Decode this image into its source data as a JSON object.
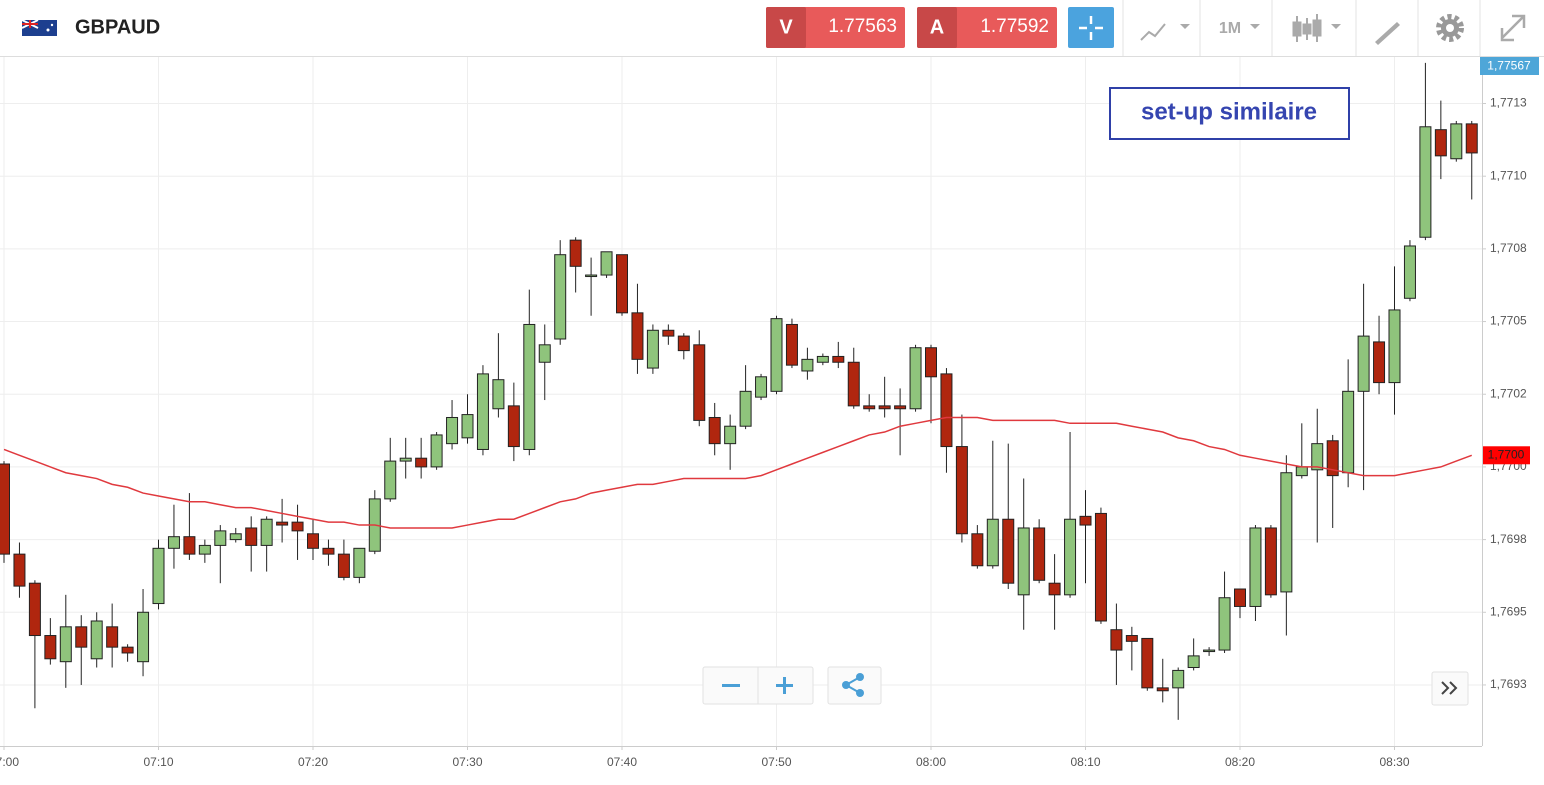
{
  "header": {
    "symbol": "GBPAUD",
    "sell_label": "V",
    "sell_price": 1.77563,
    "buy_label": "A",
    "buy_price": 1.77592,
    "timeframe": "1M"
  },
  "chart_data": {
    "type": "candlestick",
    "annotation": "set-up similaire",
    "price_label": "1,77567",
    "up_color": "#8fc47c",
    "down_color": "#b0260f",
    "grid": true,
    "ylim": [
      1.76904,
      1.77141
    ],
    "yticks": [
      {
        "value": 1.76925,
        "label": "1,7693"
      },
      {
        "value": 1.7695,
        "label": "1,7695"
      },
      {
        "value": 1.76975,
        "label": "1,7698"
      },
      {
        "value": 1.77,
        "label": "1,7700"
      },
      {
        "value": 1.77025,
        "label": "1,7702"
      },
      {
        "value": 1.7705,
        "label": "1,7705"
      },
      {
        "value": 1.77075,
        "label": "1,7708"
      },
      {
        "value": 1.771,
        "label": "1,7710"
      },
      {
        "value": 1.77125,
        "label": "1,7713"
      }
    ],
    "categories": [
      "07:00",
      null,
      null,
      null,
      null,
      null,
      null,
      null,
      null,
      null,
      "07:10",
      null,
      null,
      null,
      null,
      null,
      null,
      null,
      null,
      null,
      "07:20",
      null,
      null,
      null,
      null,
      null,
      null,
      null,
      null,
      null,
      "07:30",
      null,
      null,
      null,
      null,
      null,
      null,
      null,
      null,
      null,
      "07:40",
      null,
      null,
      null,
      null,
      null,
      null,
      null,
      null,
      null,
      "07:50",
      null,
      null,
      null,
      null,
      null,
      null,
      null,
      null,
      null,
      "08:00",
      null,
      null,
      null,
      null,
      null,
      null,
      null,
      null,
      null,
      "08:10",
      null,
      null,
      null,
      null,
      null,
      null,
      null,
      null,
      null,
      "08:20",
      null,
      null,
      null,
      null,
      null,
      null,
      null,
      null,
      null,
      "08:30",
      null,
      null,
      null,
      null,
      null
    ],
    "open": [
      1.77001,
      1.7697,
      1.7696,
      1.76942,
      1.76933,
      1.76945,
      1.76934,
      1.76945,
      1.76938,
      1.76933,
      1.76953,
      1.76972,
      1.76976,
      1.7697,
      1.76973,
      1.76975,
      1.76979,
      1.76973,
      1.76981,
      1.76981,
      1.76977,
      1.76972,
      1.7697,
      1.76962,
      1.76971,
      1.76989,
      1.77002,
      1.77003,
      1.77,
      1.77008,
      1.7701,
      1.77006,
      1.7702,
      1.77021,
      1.77006,
      1.77036,
      1.77044,
      1.77078,
      1.77066,
      1.77066,
      1.77073,
      1.77053,
      1.77034,
      1.77047,
      1.77045,
      1.77042,
      1.77017,
      1.77008,
      1.77014,
      1.77024,
      1.77026,
      1.77049,
      1.77033,
      1.77036,
      1.77038,
      1.77036,
      1.77021,
      1.77021,
      1.77021,
      1.7702,
      1.77041,
      1.77032,
      1.77007,
      1.76977,
      1.76966,
      1.76982,
      1.76956,
      1.76979,
      1.7696,
      1.76956,
      1.76983,
      1.76984,
      1.76944,
      1.76942,
      1.76941,
      1.76924,
      1.76924,
      1.76931,
      1.76937,
      1.76937,
      1.76958,
      1.76952,
      1.76979,
      1.76957,
      1.76997,
      1.76999,
      1.77009,
      1.76998,
      1.77026,
      1.77043,
      1.77029,
      1.77058,
      1.77079,
      1.77116,
      1.77106,
      1.77118
    ],
    "high": [
      1.77002,
      1.76974,
      1.76961,
      1.76948,
      1.76956,
      1.76949,
      1.7695,
      1.76953,
      1.76939,
      1.76958,
      1.76975,
      1.76987,
      1.76991,
      1.76975,
      1.7698,
      1.76979,
      1.76983,
      1.76983,
      1.76989,
      1.76987,
      1.76982,
      1.76975,
      1.76975,
      1.76972,
      1.76992,
      1.7701,
      1.7701,
      1.7701,
      1.77012,
      1.77023,
      1.77025,
      1.77035,
      1.77046,
      1.77029,
      1.77061,
      1.77049,
      1.77078,
      1.77079,
      1.77072,
      1.77074,
      1.77073,
      1.77063,
      1.77049,
      1.77049,
      1.77046,
      1.77047,
      1.77022,
      1.77018,
      1.77035,
      1.77032,
      1.77052,
      1.77051,
      1.77041,
      1.77039,
      1.77043,
      1.77041,
      1.77025,
      1.77031,
      1.77027,
      1.77042,
      1.77042,
      1.77034,
      1.77018,
      1.7698,
      1.77009,
      1.77008,
      1.76996,
      1.76982,
      1.7697,
      1.77012,
      1.76992,
      1.76986,
      1.76953,
      1.76945,
      1.76941,
      1.76934,
      1.76931,
      1.76941,
      1.76938,
      1.76964,
      1.76958,
      1.7698,
      1.7698,
      1.77004,
      1.77015,
      1.7702,
      1.77011,
      1.77037,
      1.77063,
      1.77052,
      1.77069,
      1.77078,
      1.77139,
      1.77126,
      1.77119,
      1.77119
    ],
    "low": [
      1.76967,
      1.76955,
      1.76917,
      1.76932,
      1.76924,
      1.76925,
      1.76931,
      1.76931,
      1.76933,
      1.76928,
      1.76951,
      1.76965,
      1.76968,
      1.76967,
      1.7696,
      1.76974,
      1.76964,
      1.76964,
      1.76974,
      1.76968,
      1.76968,
      1.76966,
      1.76961,
      1.7696,
      1.7697,
      1.76988,
      1.76996,
      1.76996,
      1.76999,
      1.77006,
      1.77008,
      1.77004,
      1.77017,
      1.77002,
      1.77004,
      1.77023,
      1.77042,
      1.7706,
      1.77052,
      1.77065,
      1.77052,
      1.77032,
      1.77032,
      1.77042,
      1.77037,
      1.77014,
      1.77004,
      1.76999,
      1.77013,
      1.77023,
      1.77025,
      1.77034,
      1.7703,
      1.77035,
      1.77034,
      1.7702,
      1.77019,
      1.77017,
      1.77004,
      1.77019,
      1.77015,
      1.76998,
      1.76974,
      1.76965,
      1.76965,
      1.76958,
      1.76944,
      1.7696,
      1.76944,
      1.76955,
      1.7696,
      1.76946,
      1.76925,
      1.7693,
      1.76923,
      1.76919,
      1.76913,
      1.7693,
      1.76935,
      1.76936,
      1.76948,
      1.76947,
      1.76955,
      1.76942,
      1.76996,
      1.76974,
      1.76979,
      1.76993,
      1.76992,
      1.77025,
      1.77018,
      1.77057,
      1.77078,
      1.77099,
      1.77105,
      1.77092
    ],
    "close": [
      1.7697,
      1.76959,
      1.76942,
      1.76934,
      1.76945,
      1.76938,
      1.76947,
      1.76938,
      1.76936,
      1.7695,
      1.76972,
      1.76976,
      1.7697,
      1.76973,
      1.76978,
      1.76977,
      1.76973,
      1.76982,
      1.7698,
      1.76978,
      1.76972,
      1.7697,
      1.76962,
      1.76972,
      1.76989,
      1.77002,
      1.77003,
      1.77,
      1.77011,
      1.77017,
      1.77018,
      1.77032,
      1.7703,
      1.77007,
      1.77049,
      1.77042,
      1.77073,
      1.77069,
      1.77066,
      1.77074,
      1.77053,
      1.77037,
      1.77047,
      1.77045,
      1.7704,
      1.77016,
      1.77008,
      1.77014,
      1.77026,
      1.77031,
      1.77051,
      1.77035,
      1.77037,
      1.77038,
      1.77036,
      1.77021,
      1.7702,
      1.7702,
      1.7702,
      1.77041,
      1.77031,
      1.77007,
      1.76977,
      1.76966,
      1.76982,
      1.7696,
      1.76979,
      1.76961,
      1.76956,
      1.76982,
      1.7698,
      1.76947,
      1.76937,
      1.7694,
      1.76924,
      1.76923,
      1.7693,
      1.76935,
      1.76937,
      1.76955,
      1.76952,
      1.76979,
      1.76956,
      1.76998,
      1.77,
      1.77008,
      1.76997,
      1.77026,
      1.77045,
      1.77029,
      1.77054,
      1.77076,
      1.77117,
      1.77107,
      1.77118,
      1.77108
    ],
    "ma": {
      "color": "#e0393e",
      "label": "1,7700",
      "values": [
        1.77006,
        1.77004,
        1.77002,
        1.77,
        1.76998,
        1.76997,
        1.76996,
        1.76994,
        1.76993,
        1.76991,
        1.7699,
        1.76989,
        1.76988,
        1.76988,
        1.76987,
        1.76986,
        1.76986,
        1.76985,
        1.76984,
        1.76983,
        1.76982,
        1.76981,
        1.76981,
        1.7698,
        1.7698,
        1.76979,
        1.76979,
        1.76979,
        1.76979,
        1.76979,
        1.7698,
        1.76981,
        1.76982,
        1.76982,
        1.76984,
        1.76986,
        1.76988,
        1.76989,
        1.76991,
        1.76992,
        1.76993,
        1.76994,
        1.76994,
        1.76995,
        1.76996,
        1.76996,
        1.76996,
        1.76996,
        1.76996,
        1.76997,
        1.76999,
        1.77001,
        1.77003,
        1.77005,
        1.77007,
        1.77009,
        1.77011,
        1.77012,
        1.77014,
        1.77015,
        1.77016,
        1.77017,
        1.77017,
        1.77017,
        1.77016,
        1.77016,
        1.77016,
        1.77016,
        1.77016,
        1.77015,
        1.77015,
        1.77015,
        1.77015,
        1.77014,
        1.77013,
        1.77012,
        1.7701,
        1.77009,
        1.77007,
        1.77006,
        1.77004,
        1.77003,
        1.77002,
        1.77001,
        1.77,
        1.77,
        1.76999,
        1.76998,
        1.76997,
        1.76997,
        1.76997,
        1.76998,
        1.76999,
        1.77,
        1.77002,
        1.77004
      ]
    }
  }
}
